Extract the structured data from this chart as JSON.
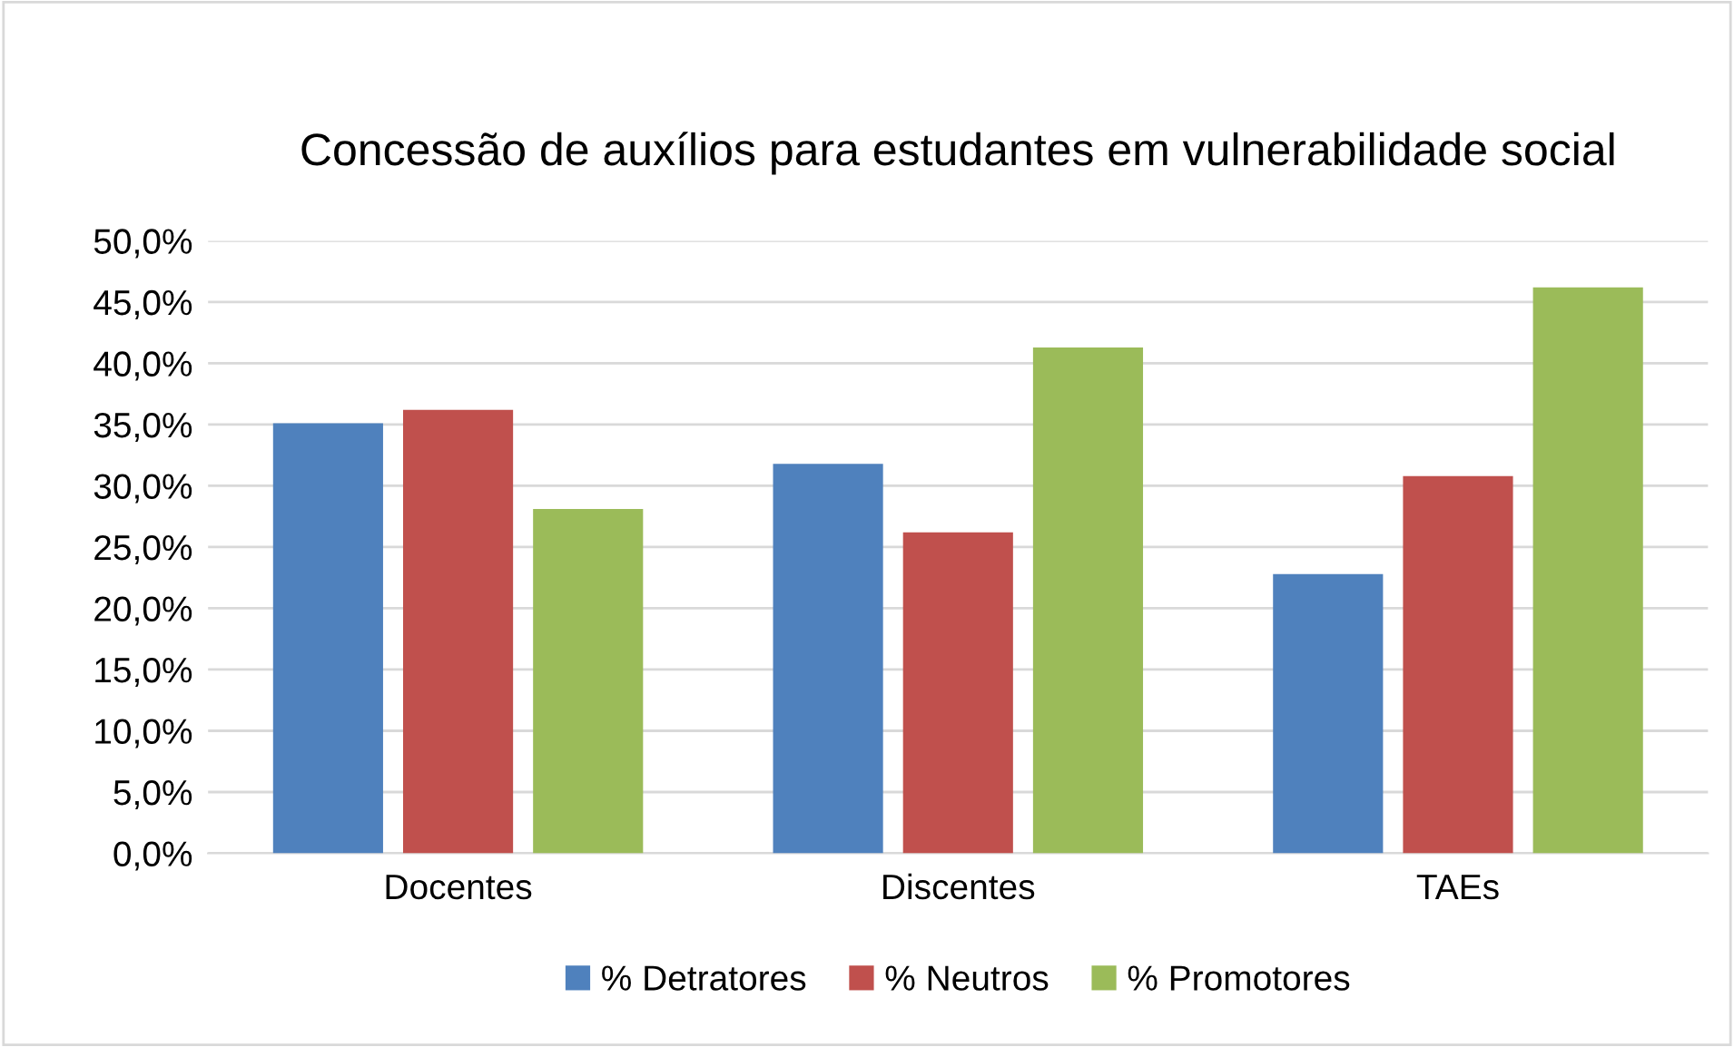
{
  "chart_data": {
    "type": "bar",
    "title": "Concessão de auxílios para estudantes em vulnerabilidade social",
    "categories": [
      "Docentes",
      "Discentes",
      "TAEs"
    ],
    "series": [
      {
        "name": "% Detratores",
        "color": "#4f81bd",
        "values": [
          35.1,
          31.8,
          22.8
        ]
      },
      {
        "name": "% Neutros",
        "color": "#c0504d",
        "values": [
          36.2,
          26.2,
          30.8
        ]
      },
      {
        "name": "% Promotores",
        "color": "#9bbb59",
        "values": [
          28.1,
          41.3,
          46.2
        ]
      }
    ],
    "ylim": [
      0,
      50
    ],
    "yticks": [
      {
        "value": 0,
        "label": "0,0%"
      },
      {
        "value": 5,
        "label": "5,0%"
      },
      {
        "value": 10,
        "label": "10,0%"
      },
      {
        "value": 15,
        "label": "15,0%"
      },
      {
        "value": 20,
        "label": "20,0%"
      },
      {
        "value": 25,
        "label": "25,0%"
      },
      {
        "value": 30,
        "label": "30,0%"
      },
      {
        "value": 35,
        "label": "35,0%"
      },
      {
        "value": 40,
        "label": "40,0%"
      },
      {
        "value": 45,
        "label": "45,0%"
      },
      {
        "value": 50,
        "label": "50,0%"
      }
    ],
    "grid": "y",
    "legend": "bottom"
  }
}
